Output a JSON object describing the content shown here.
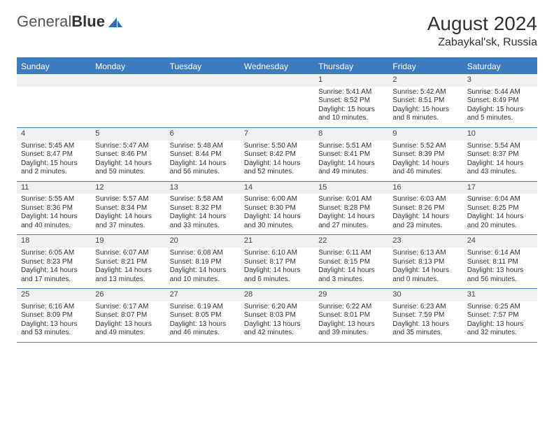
{
  "brand": {
    "part1": "General",
    "part2": "Blue"
  },
  "title": "August 2024",
  "location": "Zabaykal'sk, Russia",
  "colors": {
    "header_bg": "#3b7bbf",
    "header_text": "#ffffff",
    "daynum_bg": "#eef0f1",
    "rule": "#3b7bbf",
    "text": "#333333",
    "logo_blue": "#2f6fb0"
  },
  "dayheads": [
    "Sunday",
    "Monday",
    "Tuesday",
    "Wednesday",
    "Thursday",
    "Friday",
    "Saturday"
  ],
  "weeks": [
    [
      null,
      null,
      null,
      null,
      {
        "n": "1",
        "sr": "Sunrise: 5:41 AM",
        "ss": "Sunset: 8:52 PM",
        "dl": "Daylight: 15 hours and 10 minutes."
      },
      {
        "n": "2",
        "sr": "Sunrise: 5:42 AM",
        "ss": "Sunset: 8:51 PM",
        "dl": "Daylight: 15 hours and 8 minutes."
      },
      {
        "n": "3",
        "sr": "Sunrise: 5:44 AM",
        "ss": "Sunset: 8:49 PM",
        "dl": "Daylight: 15 hours and 5 minutes."
      }
    ],
    [
      {
        "n": "4",
        "sr": "Sunrise: 5:45 AM",
        "ss": "Sunset: 8:47 PM",
        "dl": "Daylight: 15 hours and 2 minutes."
      },
      {
        "n": "5",
        "sr": "Sunrise: 5:47 AM",
        "ss": "Sunset: 8:46 PM",
        "dl": "Daylight: 14 hours and 59 minutes."
      },
      {
        "n": "6",
        "sr": "Sunrise: 5:48 AM",
        "ss": "Sunset: 8:44 PM",
        "dl": "Daylight: 14 hours and 56 minutes."
      },
      {
        "n": "7",
        "sr": "Sunrise: 5:50 AM",
        "ss": "Sunset: 8:42 PM",
        "dl": "Daylight: 14 hours and 52 minutes."
      },
      {
        "n": "8",
        "sr": "Sunrise: 5:51 AM",
        "ss": "Sunset: 8:41 PM",
        "dl": "Daylight: 14 hours and 49 minutes."
      },
      {
        "n": "9",
        "sr": "Sunrise: 5:52 AM",
        "ss": "Sunset: 8:39 PM",
        "dl": "Daylight: 14 hours and 46 minutes."
      },
      {
        "n": "10",
        "sr": "Sunrise: 5:54 AM",
        "ss": "Sunset: 8:37 PM",
        "dl": "Daylight: 14 hours and 43 minutes."
      }
    ],
    [
      {
        "n": "11",
        "sr": "Sunrise: 5:55 AM",
        "ss": "Sunset: 8:36 PM",
        "dl": "Daylight: 14 hours and 40 minutes."
      },
      {
        "n": "12",
        "sr": "Sunrise: 5:57 AM",
        "ss": "Sunset: 8:34 PM",
        "dl": "Daylight: 14 hours and 37 minutes."
      },
      {
        "n": "13",
        "sr": "Sunrise: 5:58 AM",
        "ss": "Sunset: 8:32 PM",
        "dl": "Daylight: 14 hours and 33 minutes."
      },
      {
        "n": "14",
        "sr": "Sunrise: 6:00 AM",
        "ss": "Sunset: 8:30 PM",
        "dl": "Daylight: 14 hours and 30 minutes."
      },
      {
        "n": "15",
        "sr": "Sunrise: 6:01 AM",
        "ss": "Sunset: 8:28 PM",
        "dl": "Daylight: 14 hours and 27 minutes."
      },
      {
        "n": "16",
        "sr": "Sunrise: 6:03 AM",
        "ss": "Sunset: 8:26 PM",
        "dl": "Daylight: 14 hours and 23 minutes."
      },
      {
        "n": "17",
        "sr": "Sunrise: 6:04 AM",
        "ss": "Sunset: 8:25 PM",
        "dl": "Daylight: 14 hours and 20 minutes."
      }
    ],
    [
      {
        "n": "18",
        "sr": "Sunrise: 6:05 AM",
        "ss": "Sunset: 8:23 PM",
        "dl": "Daylight: 14 hours and 17 minutes."
      },
      {
        "n": "19",
        "sr": "Sunrise: 6:07 AM",
        "ss": "Sunset: 8:21 PM",
        "dl": "Daylight: 14 hours and 13 minutes."
      },
      {
        "n": "20",
        "sr": "Sunrise: 6:08 AM",
        "ss": "Sunset: 8:19 PM",
        "dl": "Daylight: 14 hours and 10 minutes."
      },
      {
        "n": "21",
        "sr": "Sunrise: 6:10 AM",
        "ss": "Sunset: 8:17 PM",
        "dl": "Daylight: 14 hours and 6 minutes."
      },
      {
        "n": "22",
        "sr": "Sunrise: 6:11 AM",
        "ss": "Sunset: 8:15 PM",
        "dl": "Daylight: 14 hours and 3 minutes."
      },
      {
        "n": "23",
        "sr": "Sunrise: 6:13 AM",
        "ss": "Sunset: 8:13 PM",
        "dl": "Daylight: 14 hours and 0 minutes."
      },
      {
        "n": "24",
        "sr": "Sunrise: 6:14 AM",
        "ss": "Sunset: 8:11 PM",
        "dl": "Daylight: 13 hours and 56 minutes."
      }
    ],
    [
      {
        "n": "25",
        "sr": "Sunrise: 6:16 AM",
        "ss": "Sunset: 8:09 PM",
        "dl": "Daylight: 13 hours and 53 minutes."
      },
      {
        "n": "26",
        "sr": "Sunrise: 6:17 AM",
        "ss": "Sunset: 8:07 PM",
        "dl": "Daylight: 13 hours and 49 minutes."
      },
      {
        "n": "27",
        "sr": "Sunrise: 6:19 AM",
        "ss": "Sunset: 8:05 PM",
        "dl": "Daylight: 13 hours and 46 minutes."
      },
      {
        "n": "28",
        "sr": "Sunrise: 6:20 AM",
        "ss": "Sunset: 8:03 PM",
        "dl": "Daylight: 13 hours and 42 minutes."
      },
      {
        "n": "29",
        "sr": "Sunrise: 6:22 AM",
        "ss": "Sunset: 8:01 PM",
        "dl": "Daylight: 13 hours and 39 minutes."
      },
      {
        "n": "30",
        "sr": "Sunrise: 6:23 AM",
        "ss": "Sunset: 7:59 PM",
        "dl": "Daylight: 13 hours and 35 minutes."
      },
      {
        "n": "31",
        "sr": "Sunrise: 6:25 AM",
        "ss": "Sunset: 7:57 PM",
        "dl": "Daylight: 13 hours and 32 minutes."
      }
    ]
  ]
}
